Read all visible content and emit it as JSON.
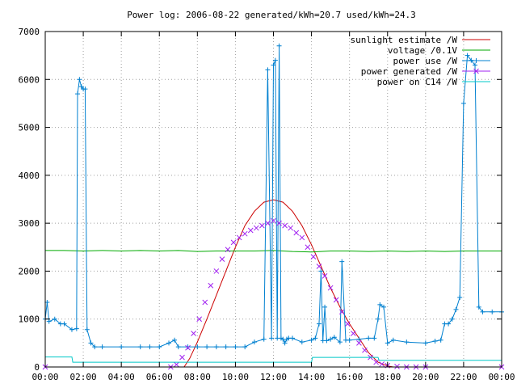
{
  "chart_data": {
    "type": "line",
    "title": "Power log: 2006-08-22 generated/kWh=20.7 used/kWh=24.3",
    "xlabel": "",
    "ylabel": "",
    "xlim": [
      0,
      24
    ],
    "ylim": [
      0,
      7000
    ],
    "grid": true,
    "legend_position": "top-right",
    "x_tick_labels": [
      "00:00",
      "02:00",
      "04:00",
      "06:00",
      "08:00",
      "10:00",
      "12:00",
      "14:00",
      "16:00",
      "18:00",
      "20:00",
      "22:00",
      "00:00"
    ],
    "y_tick_values": [
      0,
      1000,
      2000,
      3000,
      4000,
      5000,
      6000,
      7000
    ],
    "y_tick_labels": [
      "0",
      "1000",
      "2000",
      "3000",
      "4000",
      "5000",
      "6000",
      "7000"
    ],
    "series": [
      {
        "name": "sunlight estimate /W",
        "color": "#cc0000",
        "style": "line",
        "x": [
          7.3,
          7.6,
          8.0,
          8.5,
          9.0,
          9.5,
          10.0,
          10.5,
          11.0,
          11.5,
          12.0,
          12.5,
          13.0,
          13.5,
          14.0,
          14.5,
          15.0,
          15.5,
          16.0,
          16.5,
          17.0,
          17.5,
          18.0,
          18.3
        ],
        "y": [
          0,
          180,
          520,
          1000,
          1500,
          2000,
          2500,
          2950,
          3250,
          3440,
          3490,
          3440,
          3250,
          2950,
          2550,
          2100,
          1650,
          1250,
          900,
          600,
          300,
          100,
          20,
          0
        ]
      },
      {
        "name": "voltage /0.1V",
        "color": "#00aa00",
        "style": "line",
        "x": [
          0,
          1,
          2,
          3,
          4,
          5,
          6,
          7,
          8,
          9,
          10,
          11,
          12,
          13,
          14,
          15,
          16,
          17,
          18,
          19,
          20,
          21,
          22,
          23,
          24
        ],
        "y": [
          2430,
          2430,
          2420,
          2430,
          2420,
          2430,
          2420,
          2430,
          2410,
          2420,
          2420,
          2420,
          2430,
          2410,
          2400,
          2420,
          2420,
          2410,
          2420,
          2410,
          2420,
          2410,
          2420,
          2420,
          2420
        ]
      },
      {
        "name": "power use /W",
        "color": "#0080d0",
        "style": "linespoints",
        "x": [
          0,
          0.1,
          0.2,
          0.5,
          0.8,
          1.0,
          1.4,
          1.65,
          1.7,
          1.8,
          1.9,
          2.0,
          2.1,
          2.2,
          2.4,
          2.6,
          3.0,
          4.0,
          5.0,
          5.5,
          6.0,
          6.5,
          6.8,
          7.0,
          7.5,
          8.0,
          8.5,
          9.0,
          9.5,
          10.0,
          10.5,
          11.0,
          11.5,
          11.7,
          11.9,
          12.0,
          12.1,
          12.2,
          12.3,
          12.4,
          12.5,
          12.6,
          12.7,
          12.8,
          13.0,
          13.5,
          14.0,
          14.2,
          14.4,
          14.5,
          14.6,
          14.7,
          14.8,
          15.0,
          15.2,
          15.5,
          15.6,
          15.8,
          16.0,
          16.5,
          17.0,
          17.3,
          17.5,
          17.6,
          17.8,
          18.0,
          18.3,
          19.0,
          20.0,
          20.5,
          20.8,
          21.0,
          21.2,
          21.4,
          21.6,
          21.8,
          22.0,
          22.2,
          22.4,
          22.6,
          22.8,
          23.0,
          23.5,
          24.0
        ],
        "y": [
          1000,
          1350,
          950,
          1000,
          900,
          900,
          780,
          800,
          5700,
          6000,
          5850,
          5800,
          5800,
          780,
          500,
          420,
          420,
          420,
          420,
          420,
          420,
          500,
          560,
          420,
          420,
          420,
          420,
          420,
          420,
          420,
          420,
          520,
          580,
          6200,
          600,
          6300,
          6400,
          600,
          6700,
          600,
          580,
          500,
          580,
          600,
          600,
          520,
          560,
          600,
          900,
          2000,
          550,
          1250,
          550,
          580,
          620,
          520,
          2200,
          560,
          560,
          580,
          600,
          600,
          1000,
          1300,
          1250,
          500,
          560,
          520,
          500,
          540,
          560,
          900,
          900,
          1000,
          1200,
          1450,
          5500,
          6500,
          6400,
          6300,
          1250,
          1150,
          1150,
          1150
        ]
      },
      {
        "name": "power generated /W",
        "color": "#a020f0",
        "style": "points",
        "x": [
          0,
          6.6,
          6.9,
          7.2,
          7.5,
          7.8,
          8.1,
          8.4,
          8.7,
          9.0,
          9.3,
          9.6,
          9.9,
          10.2,
          10.5,
          10.8,
          11.1,
          11.4,
          11.7,
          12.0,
          12.3,
          12.6,
          12.9,
          13.2,
          13.5,
          13.8,
          14.1,
          14.4,
          14.7,
          15.0,
          15.3,
          15.6,
          15.9,
          16.2,
          16.5,
          16.8,
          17.1,
          17.4,
          17.7,
          18.0,
          18.5,
          19.0,
          19.5,
          20.0,
          24.0
        ],
        "y": [
          0,
          0,
          50,
          200,
          400,
          700,
          1000,
          1350,
          1700,
          2000,
          2250,
          2450,
          2600,
          2700,
          2780,
          2850,
          2900,
          2950,
          3000,
          3050,
          3000,
          2950,
          2900,
          2800,
          2700,
          2500,
          2300,
          2100,
          1900,
          1650,
          1400,
          1150,
          900,
          700,
          500,
          350,
          200,
          100,
          60,
          30,
          10,
          0,
          0,
          0,
          0
        ]
      },
      {
        "name": "power on C14 /W",
        "color": "#00c8c8",
        "style": "line",
        "x": [
          0,
          1.4,
          1.45,
          14.0,
          14.05,
          17.5,
          17.55,
          24.0
        ],
        "y": [
          210,
          210,
          100,
          100,
          200,
          200,
          140,
          140
        ]
      }
    ]
  }
}
